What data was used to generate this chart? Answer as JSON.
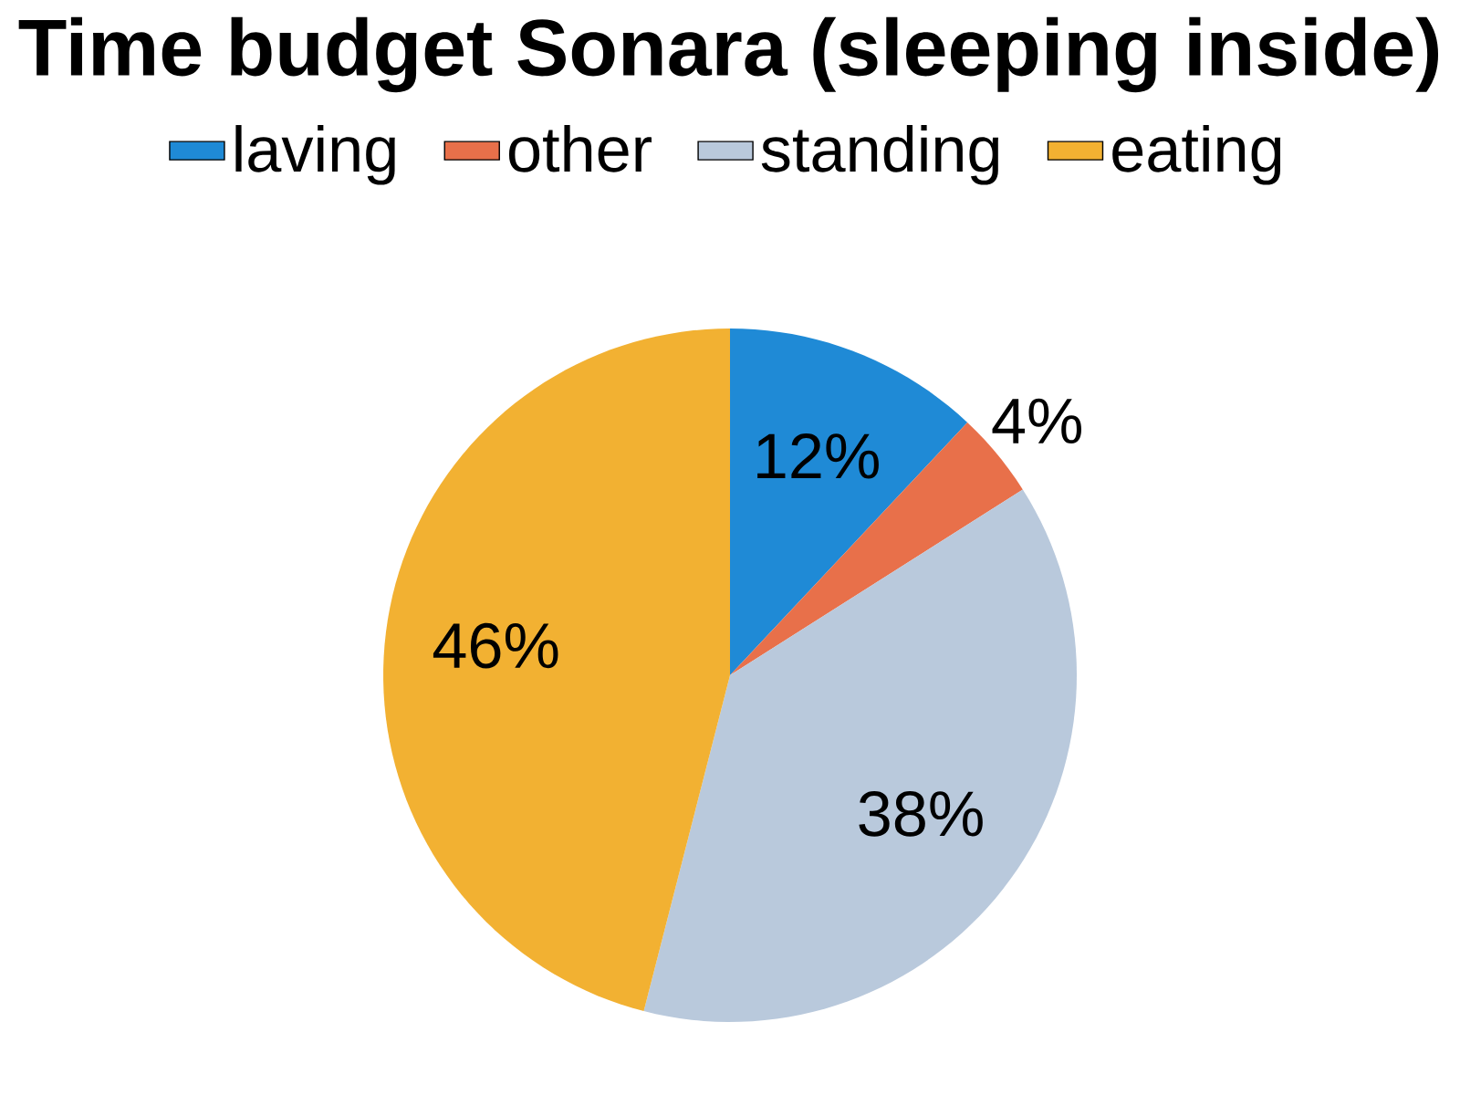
{
  "chart_data": {
    "type": "pie",
    "title": "Time budget Sonara (sleeping inside)",
    "categories": [
      "laving",
      "other",
      "standing",
      "eating"
    ],
    "values": [
      12,
      4,
      38,
      46
    ],
    "colors": [
      "#1f8ad6",
      "#e8704a",
      "#b9c9dc",
      "#f2b132"
    ],
    "value_labels": [
      "12%",
      "4%",
      "38%",
      "46%"
    ],
    "legend": "top"
  }
}
